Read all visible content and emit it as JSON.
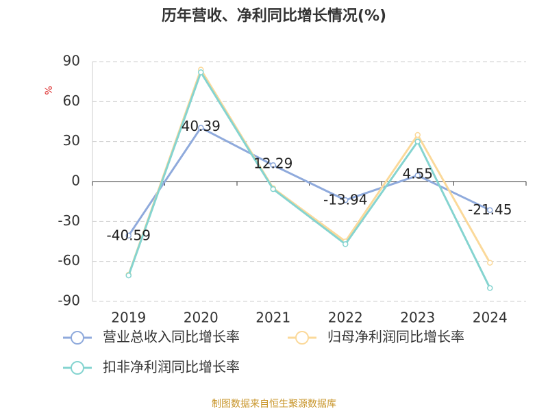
{
  "chart_data": {
    "type": "line",
    "title": "历年营收、净利同比增长情况(%)",
    "y_label": "%",
    "source": "制图数据来自恒生聚源数据库",
    "categories": [
      "2019",
      "2020",
      "2021",
      "2022",
      "2023",
      "2024"
    ],
    "series": [
      {
        "name": "营业总收入同比增长率",
        "color": "#8faadc",
        "values": [
          -40.59,
          40.39,
          12.29,
          -13.94,
          4.55,
          -21.45
        ],
        "show_labels": true
      },
      {
        "name": "归母净利润同比增长率",
        "color": "#fbd99a",
        "values": [
          -70,
          84,
          -5,
          -45,
          35,
          -61
        ],
        "show_labels": false
      },
      {
        "name": "扣非净利润同比增长率",
        "color": "#85d4d0",
        "values": [
          -70.5,
          82,
          -5.7,
          -47,
          30,
          -80
        ],
        "show_labels": false
      }
    ],
    "ylim": [
      -90,
      90
    ],
    "yticks": [
      -90,
      -60,
      -30,
      0,
      30,
      60,
      90
    ],
    "grid": true
  }
}
